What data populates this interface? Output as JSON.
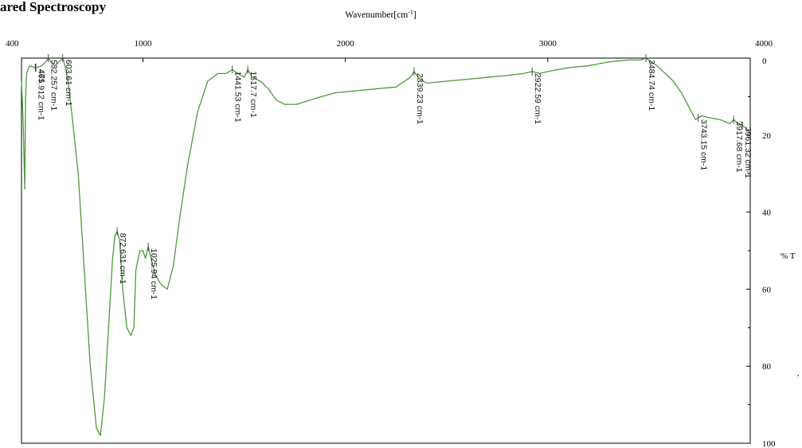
{
  "page": {
    "heading": "ared Spectroscopy"
  },
  "chart_data": {
    "type": "line",
    "title": "",
    "xlabel": "Wavenumber[cm-1]",
    "xlabel_base": "Wavenumber[cm",
    "xlabel_sup": "-1",
    "xlabel_end": "]",
    "ylabel": "% T",
    "xlim": [
      400,
      4000
    ],
    "ylim": [
      0,
      100
    ],
    "y_inverted": true,
    "x_ticks": [
      400,
      1000,
      2000,
      3000,
      4000
    ],
    "y_ticks": [
      0,
      20,
      40,
      60,
      80,
      100
    ],
    "grid": false,
    "line_color": "#4c9a3c",
    "series": [
      {
        "x": [
          400,
          405,
          410,
          416,
          420,
          425,
          432,
          440,
          470,
          500,
          520,
          532.257,
          545,
          565,
          585,
          603.61,
          615,
          630,
          650,
          680,
          710,
          740,
          770,
          790,
          810,
          830,
          850,
          862,
          872.631,
          884,
          900,
          920,
          940,
          955,
          965,
          985,
          1000,
          1012,
          1025.94,
          1040,
          1060,
          1080,
          1095,
          1120,
          1150,
          1180,
          1220,
          1270,
          1320,
          1370,
          1410,
          1441.53,
          1470,
          1500,
          1517.7,
          1540,
          1580,
          1620,
          1660,
          1700,
          1760,
          1850,
          1950,
          2050,
          2150,
          2250,
          2320,
          2339.23,
          2360,
          2400,
          2500,
          2600,
          2700,
          2800,
          2880,
          2922.59,
          2960,
          3000,
          3100,
          3200,
          3300,
          3400,
          3460,
          3484.74,
          3510,
          3540,
          3580,
          3620,
          3660,
          3700,
          3730,
          3743.15,
          3760,
          3800,
          3850,
          3900,
          3917.68,
          3940,
          3961.32,
          3975,
          3990,
          4000
        ],
        "y": [
          6,
          12,
          20,
          34,
          10,
          4,
          3,
          2,
          2.5,
          2,
          1,
          0,
          1,
          2,
          1,
          0,
          2,
          6,
          15,
          30,
          55,
          80,
          96,
          98,
          88,
          70,
          52,
          46,
          45,
          47,
          60,
          70,
          72,
          70,
          55,
          50,
          50,
          52,
          49,
          52,
          56,
          58,
          59,
          60,
          54,
          42,
          28,
          14,
          6,
          4,
          4,
          3,
          4,
          5,
          3,
          5,
          6,
          8,
          11,
          12,
          12,
          10.5,
          9,
          8.5,
          8,
          7.5,
          5,
          3.5,
          5,
          6.5,
          6,
          5.5,
          5,
          4.5,
          4,
          3.5,
          4,
          3.5,
          2.5,
          2,
          1,
          0.5,
          0.5,
          0,
          1,
          2,
          4,
          6,
          9,
          13,
          16,
          15.5,
          15,
          15.5,
          16,
          17,
          16,
          17,
          17.5,
          18,
          19,
          20
        ]
      }
    ],
    "annotations": [
      {
        "x": 471,
        "label": "471"
      },
      {
        "x": 468,
        "label": "465.912 cm-1"
      },
      {
        "x": 532.257,
        "label": "532.257 cm-1"
      },
      {
        "x": 603.61,
        "label": "603.61 cm-1"
      },
      {
        "x": 872.631,
        "label": "872.631 cm-1"
      },
      {
        "x": 1025.94,
        "label": "1025.94 cm-1"
      },
      {
        "x": 1441.53,
        "label": "1441.53 cm-1"
      },
      {
        "x": 1517.7,
        "label": "1517.7 cm-1"
      },
      {
        "x": 2339.23,
        "label": "2339.23 cm-1"
      },
      {
        "x": 2922.59,
        "label": "2922.59 cm-1"
      },
      {
        "x": 3484.74,
        "label": "3484.74 cm-1"
      },
      {
        "x": 3743.15,
        "label": "3743.15 cm-1"
      },
      {
        "x": 3917.68,
        "label": "3917.68 cm-1"
      },
      {
        "x": 3961.32,
        "label": "3961.32 cm-1"
      }
    ]
  }
}
